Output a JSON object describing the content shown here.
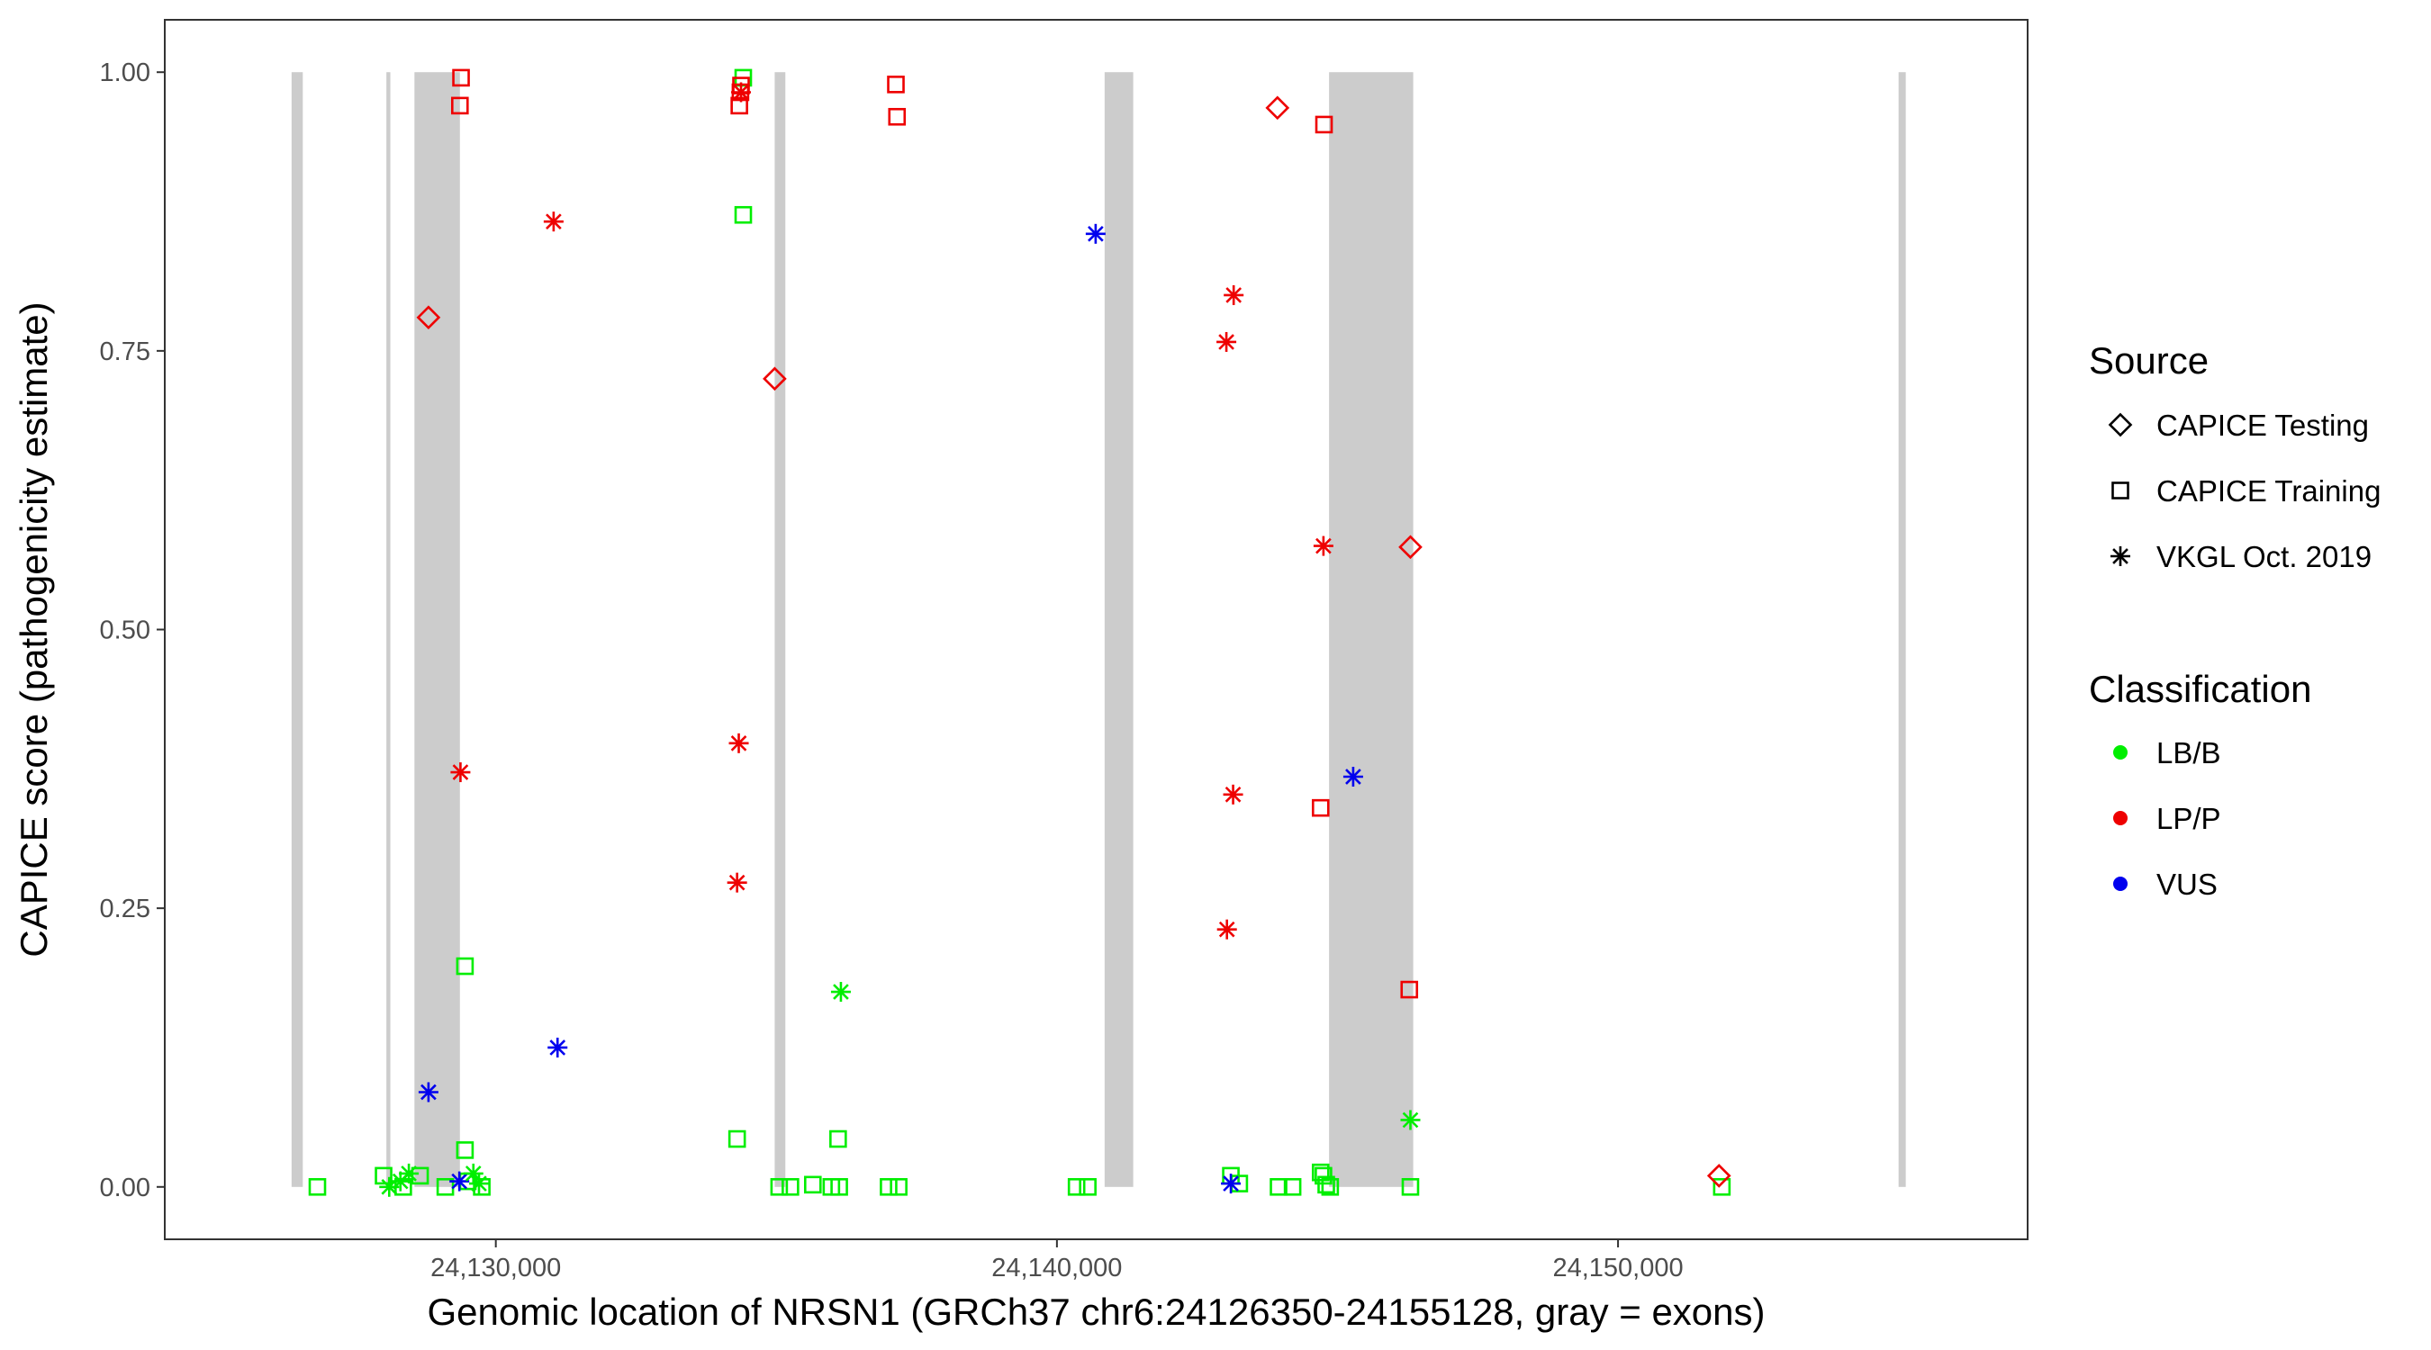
{
  "chart_data": {
    "type": "scatter",
    "xlabel": "Genomic location of NRSN1 (GRCh37 chr6:24126350-24155128, gray = exons)",
    "ylabel": "CAPICE score (pathogenicity estimate)",
    "xlim": [
      24124100,
      24157300
    ],
    "ylim": [
      -0.047,
      1.047
    ],
    "x_ticks": [
      24130000,
      24140000,
      24150000
    ],
    "x_tick_labels": [
      "24,130,000",
      "24,140,000",
      "24,150,000"
    ],
    "y_ticks": [
      0,
      0.25,
      0.5,
      0.75,
      1.0
    ],
    "y_tick_labels": [
      "0.00",
      "0.25",
      "0.50",
      "0.75",
      "1.00"
    ],
    "grid": false,
    "legend_position": "right",
    "exons": [
      [
        24126360,
        24126560
      ],
      [
        24128050,
        24128120
      ],
      [
        24128550,
        24129360
      ],
      [
        24134970,
        24135160
      ],
      [
        24140850,
        24141360
      ],
      [
        24144850,
        24146350
      ],
      [
        24155000,
        24155128
      ]
    ],
    "colors": {
      "LB/B": "#00ee00",
      "LP/P": "#ee0000",
      "VUS": "#0000ee",
      "exon": "#cccccc"
    },
    "legend": {
      "source_title": "Source",
      "source_items": [
        {
          "label": "CAPICE Testing",
          "shape": "diamond"
        },
        {
          "label": "CAPICE Training",
          "shape": "square"
        },
        {
          "label": "VKGL Oct. 2019",
          "shape": "asterisk"
        }
      ],
      "class_title": "Classification",
      "class_items": [
        {
          "label": "LB/B"
        },
        {
          "label": "LP/P"
        },
        {
          "label": "VUS"
        }
      ]
    },
    "points": [
      {
        "x": 24129380,
        "y": 0.995,
        "source": "CAPICE Training",
        "class": "LP/P"
      },
      {
        "x": 24129360,
        "y": 0.97,
        "source": "CAPICE Training",
        "class": "LP/P"
      },
      {
        "x": 24134410,
        "y": 0.995,
        "source": "CAPICE Training",
        "class": "LB/B"
      },
      {
        "x": 24134370,
        "y": 0.988,
        "source": "CAPICE Training",
        "class": "LP/P"
      },
      {
        "x": 24134360,
        "y": 0.982,
        "source": "CAPICE Training",
        "class": "LP/P"
      },
      {
        "x": 24134340,
        "y": 0.97,
        "source": "CAPICE Training",
        "class": "LP/P"
      },
      {
        "x": 24137130,
        "y": 0.989,
        "source": "CAPICE Training",
        "class": "LP/P"
      },
      {
        "x": 24137150,
        "y": 0.96,
        "source": "CAPICE Training",
        "class": "LP/P"
      },
      {
        "x": 24144760,
        "y": 0.953,
        "source": "CAPICE Training",
        "class": "LP/P"
      },
      {
        "x": 24134410,
        "y": 0.872,
        "source": "CAPICE Training",
        "class": "LB/B"
      },
      {
        "x": 24144700,
        "y": 0.34,
        "source": "CAPICE Training",
        "class": "LP/P"
      },
      {
        "x": 24146280,
        "y": 0.177,
        "source": "CAPICE Training",
        "class": "LP/P"
      },
      {
        "x": 24129450,
        "y": 0.198,
        "source": "CAPICE Training",
        "class": "LB/B"
      },
      {
        "x": 24134300,
        "y": 0.043,
        "source": "CAPICE Training",
        "class": "LB/B"
      },
      {
        "x": 24136100,
        "y": 0.043,
        "source": "CAPICE Training",
        "class": "LB/B"
      },
      {
        "x": 24129450,
        "y": 0.033,
        "source": "CAPICE Training",
        "class": "LB/B"
      },
      {
        "x": 24126820,
        "y": 0.0,
        "source": "CAPICE Training",
        "class": "LB/B"
      },
      {
        "x": 24128000,
        "y": 0.01,
        "source": "CAPICE Training",
        "class": "LB/B"
      },
      {
        "x": 24128350,
        "y": 0.0,
        "source": "CAPICE Training",
        "class": "LB/B"
      },
      {
        "x": 24128650,
        "y": 0.01,
        "source": "CAPICE Training",
        "class": "LB/B"
      },
      {
        "x": 24129100,
        "y": 0.0,
        "source": "CAPICE Training",
        "class": "LB/B"
      },
      {
        "x": 24129500,
        "y": 0.005,
        "source": "CAPICE Training",
        "class": "LB/B"
      },
      {
        "x": 24129750,
        "y": 0.0,
        "source": "CAPICE Training",
        "class": "LB/B"
      },
      {
        "x": 24135050,
        "y": 0.0,
        "source": "CAPICE Training",
        "class": "LB/B"
      },
      {
        "x": 24135250,
        "y": 0.0,
        "source": "CAPICE Training",
        "class": "LB/B"
      },
      {
        "x": 24135650,
        "y": 0.002,
        "source": "CAPICE Training",
        "class": "LB/B"
      },
      {
        "x": 24135980,
        "y": 0.0,
        "source": "CAPICE Training",
        "class": "LB/B"
      },
      {
        "x": 24136120,
        "y": 0.0,
        "source": "CAPICE Training",
        "class": "LB/B"
      },
      {
        "x": 24137000,
        "y": 0.0,
        "source": "CAPICE Training",
        "class": "LB/B"
      },
      {
        "x": 24137180,
        "y": 0.0,
        "source": "CAPICE Training",
        "class": "LB/B"
      },
      {
        "x": 24140350,
        "y": 0.0,
        "source": "CAPICE Training",
        "class": "LB/B"
      },
      {
        "x": 24140550,
        "y": 0.0,
        "source": "CAPICE Training",
        "class": "LB/B"
      },
      {
        "x": 24143100,
        "y": 0.01,
        "source": "CAPICE Training",
        "class": "LB/B"
      },
      {
        "x": 24143250,
        "y": 0.003,
        "source": "CAPICE Training",
        "class": "LB/B"
      },
      {
        "x": 24143950,
        "y": 0.0,
        "source": "CAPICE Training",
        "class": "LB/B"
      },
      {
        "x": 24144200,
        "y": 0.0,
        "source": "CAPICE Training",
        "class": "LB/B"
      },
      {
        "x": 24144700,
        "y": 0.013,
        "source": "CAPICE Training",
        "class": "LB/B"
      },
      {
        "x": 24144750,
        "y": 0.01,
        "source": "CAPICE Training",
        "class": "LB/B"
      },
      {
        "x": 24144800,
        "y": 0.002,
        "source": "CAPICE Training",
        "class": "LB/B"
      },
      {
        "x": 24144870,
        "y": 0.0,
        "source": "CAPICE Training",
        "class": "LB/B"
      },
      {
        "x": 24146300,
        "y": 0.0,
        "source": "CAPICE Training",
        "class": "LB/B"
      },
      {
        "x": 24151850,
        "y": 0.0,
        "source": "CAPICE Training",
        "class": "LB/B"
      },
      {
        "x": 24128800,
        "y": 0.78,
        "source": "CAPICE Testing",
        "class": "LP/P"
      },
      {
        "x": 24134970,
        "y": 0.725,
        "source": "CAPICE Testing",
        "class": "LP/P"
      },
      {
        "x": 24143930,
        "y": 0.968,
        "source": "CAPICE Testing",
        "class": "LP/P"
      },
      {
        "x": 24146300,
        "y": 0.574,
        "source": "CAPICE Testing",
        "class": "LP/P"
      },
      {
        "x": 24151800,
        "y": 0.01,
        "source": "CAPICE Testing",
        "class": "LP/P"
      },
      {
        "x": 24131030,
        "y": 0.866,
        "source": "VKGL Oct. 2019",
        "class": "LP/P"
      },
      {
        "x": 24134370,
        "y": 0.982,
        "source": "VKGL Oct. 2019",
        "class": "LP/P"
      },
      {
        "x": 24143150,
        "y": 0.8,
        "source": "VKGL Oct. 2019",
        "class": "LP/P"
      },
      {
        "x": 24143020,
        "y": 0.758,
        "source": "VKGL Oct. 2019",
        "class": "LP/P"
      },
      {
        "x": 24144750,
        "y": 0.575,
        "source": "VKGL Oct. 2019",
        "class": "LP/P"
      },
      {
        "x": 24134330,
        "y": 0.398,
        "source": "VKGL Oct. 2019",
        "class": "LP/P"
      },
      {
        "x": 24129370,
        "y": 0.372,
        "source": "VKGL Oct. 2019",
        "class": "LP/P"
      },
      {
        "x": 24143140,
        "y": 0.352,
        "source": "VKGL Oct. 2019",
        "class": "LP/P"
      },
      {
        "x": 24134300,
        "y": 0.273,
        "source": "VKGL Oct. 2019",
        "class": "LP/P"
      },
      {
        "x": 24143030,
        "y": 0.231,
        "source": "VKGL Oct. 2019",
        "class": "LP/P"
      },
      {
        "x": 24140690,
        "y": 0.855,
        "source": "VKGL Oct. 2019",
        "class": "VUS"
      },
      {
        "x": 24145280,
        "y": 0.368,
        "source": "VKGL Oct. 2019",
        "class": "VUS"
      },
      {
        "x": 24131100,
        "y": 0.125,
        "source": "VKGL Oct. 2019",
        "class": "VUS"
      },
      {
        "x": 24128800,
        "y": 0.085,
        "source": "VKGL Oct. 2019",
        "class": "VUS"
      },
      {
        "x": 24129350,
        "y": 0.005,
        "source": "VKGL Oct. 2019",
        "class": "VUS"
      },
      {
        "x": 24143100,
        "y": 0.003,
        "source": "VKGL Oct. 2019",
        "class": "VUS"
      },
      {
        "x": 24136150,
        "y": 0.175,
        "source": "VKGL Oct. 2019",
        "class": "LB/B"
      },
      {
        "x": 24146300,
        "y": 0.06,
        "source": "VKGL Oct. 2019",
        "class": "LB/B"
      },
      {
        "x": 24128100,
        "y": 0.0,
        "source": "VKGL Oct. 2019",
        "class": "LB/B"
      },
      {
        "x": 24128300,
        "y": 0.005,
        "source": "VKGL Oct. 2019",
        "class": "LB/B"
      },
      {
        "x": 24128450,
        "y": 0.012,
        "source": "VKGL Oct. 2019",
        "class": "LB/B"
      },
      {
        "x": 24129600,
        "y": 0.012,
        "source": "VKGL Oct. 2019",
        "class": "LB/B"
      },
      {
        "x": 24129700,
        "y": 0.003,
        "source": "VKGL Oct. 2019",
        "class": "LB/B"
      }
    ]
  }
}
